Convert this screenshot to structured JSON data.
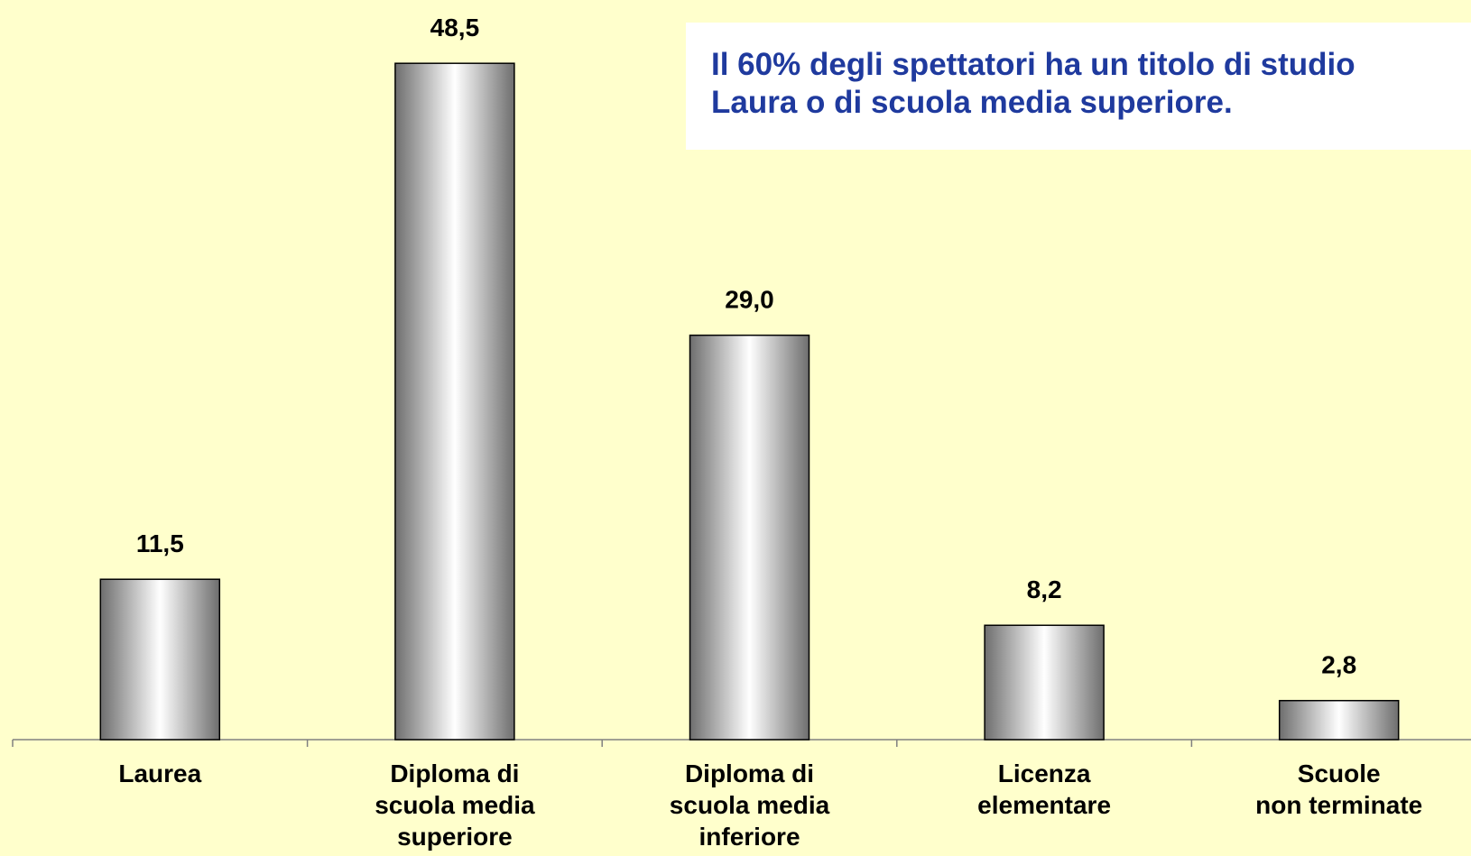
{
  "chart_data": {
    "type": "bar",
    "annotation": "Il 60% degli spettatori ha un titolo di studio\nLaura o di scuola media superiore.",
    "categories": [
      "Laurea",
      "Diploma di\nscuola media\nsuperiore",
      "Diploma di\nscuola media\ninferiore",
      "Licenza\nelementare",
      "Scuole\nnon terminate"
    ],
    "values": [
      11.5,
      48.5,
      29.0,
      8.2,
      2.8
    ],
    "value_labels": [
      "11,5",
      "48,5",
      "29,0",
      "8,2",
      "2,8"
    ],
    "color": "#808080",
    "ylim": [
      0,
      50
    ]
  }
}
